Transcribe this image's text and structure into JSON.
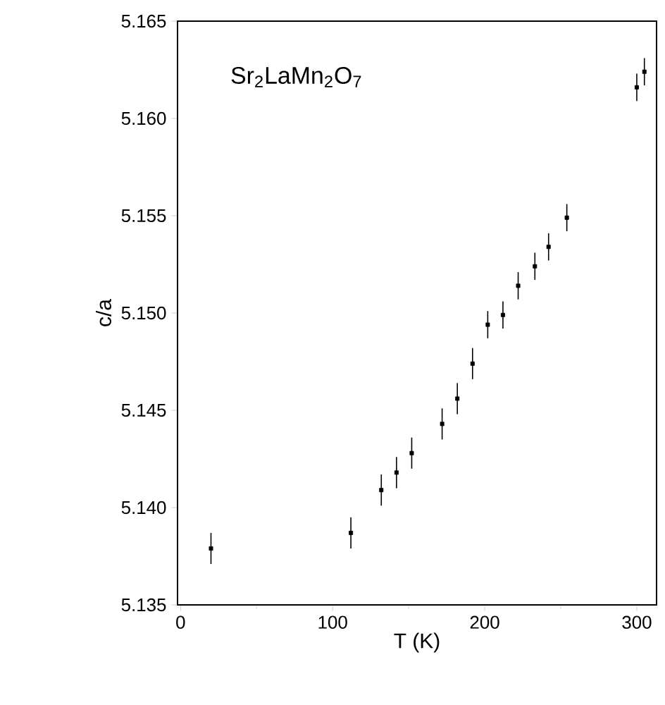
{
  "chart_data": {
    "type": "scatter",
    "xlabel": "T (K)",
    "ylabel": "c/a",
    "annotations": [
      "Sr$_{2}$LaMn$_{2}$O$_{7}$"
    ],
    "x": [
      20,
      112,
      132,
      142,
      152,
      172,
      182,
      192,
      202,
      212,
      222,
      233,
      242,
      254,
      300,
      305
    ],
    "values": [
      5.1379,
      5.1387,
      5.1409,
      5.1418,
      5.1428,
      5.1443,
      5.1456,
      5.1474,
      5.1494,
      5.1499,
      5.1514,
      5.1524,
      5.1534,
      5.1549,
      5.1616,
      5.1624
    ],
    "errors": [
      0.0008,
      0.0008,
      0.0008,
      0.0008,
      0.0008,
      0.0008,
      0.0008,
      0.0008,
      0.0007,
      0.0007,
      0.0007,
      0.0007,
      0.0007,
      0.0007,
      0.0007,
      0.0007
    ],
    "color": "#000000",
    "marker": "square",
    "xlim": [
      -2,
      313
    ],
    "ylim": [
      5.135,
      5.165
    ],
    "xticks": [
      0,
      100,
      200,
      300
    ],
    "yticks": [
      {
        "value": 5.135,
        "label": "5.135"
      },
      {
        "value": 5.14,
        "label": "5.140"
      },
      {
        "value": 5.145,
        "label": "5.145"
      },
      {
        "value": 5.15,
        "label": "5.150"
      },
      {
        "value": 5.155,
        "label": "5.155"
      },
      {
        "value": 5.16,
        "label": "5.160"
      },
      {
        "value": 5.165,
        "label": "5.165"
      }
    ],
    "grid": false
  }
}
